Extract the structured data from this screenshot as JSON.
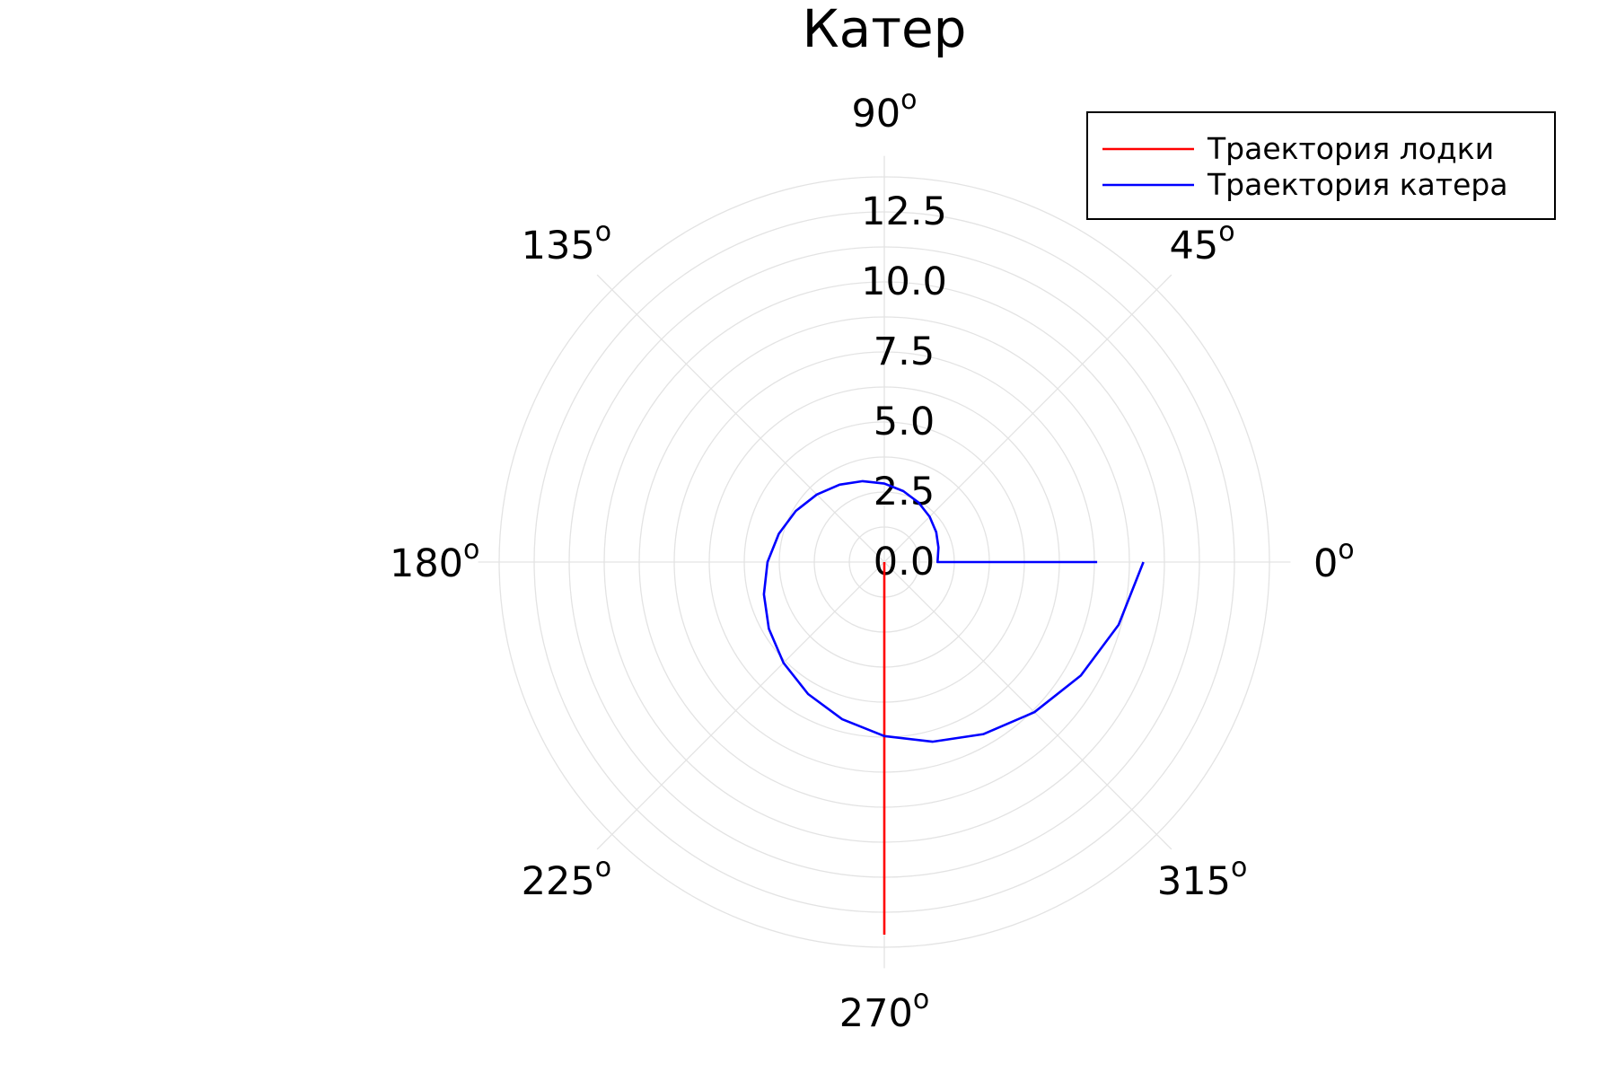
{
  "chart_data": {
    "type": "line",
    "coordinate_system": "polar",
    "title": "Катер",
    "angle_ticks_deg": [
      "0",
      "45",
      "90",
      "135",
      "180",
      "225",
      "270",
      "315"
    ],
    "angle_unit_symbol": "o",
    "radial_ticks": [
      "0.0",
      "2.5",
      "5.0",
      "7.5",
      "10.0",
      "12.5"
    ],
    "radial_tick_values": [
      0,
      2.5,
      5.0,
      7.5,
      10.0,
      12.5
    ],
    "rlim": [
      0,
      14.5
    ],
    "grid": true,
    "legend_position": "top-right",
    "series": [
      {
        "name": "Траектория лодки",
        "color": "#ff0000",
        "theta_deg": [
          270,
          270
        ],
        "r": [
          0,
          13.3
        ]
      },
      {
        "name": "Траектория катера",
        "color": "#0000ff",
        "theta_deg": [
          0,
          0,
          15,
          30,
          45,
          60,
          75,
          90,
          105,
          120,
          135,
          150,
          165,
          180,
          195,
          210,
          225,
          240,
          255,
          270,
          285,
          300,
          315,
          330,
          345,
          360
        ],
        "r": [
          7.6,
          1.9,
          2.0,
          2.14,
          2.29,
          2.45,
          2.62,
          2.8,
          2.99,
          3.19,
          3.41,
          3.65,
          3.9,
          4.17,
          4.45,
          4.76,
          5.09,
          5.44,
          5.81,
          6.21,
          6.64,
          7.09,
          7.58,
          8.1,
          8.66,
          9.25
        ]
      }
    ]
  }
}
